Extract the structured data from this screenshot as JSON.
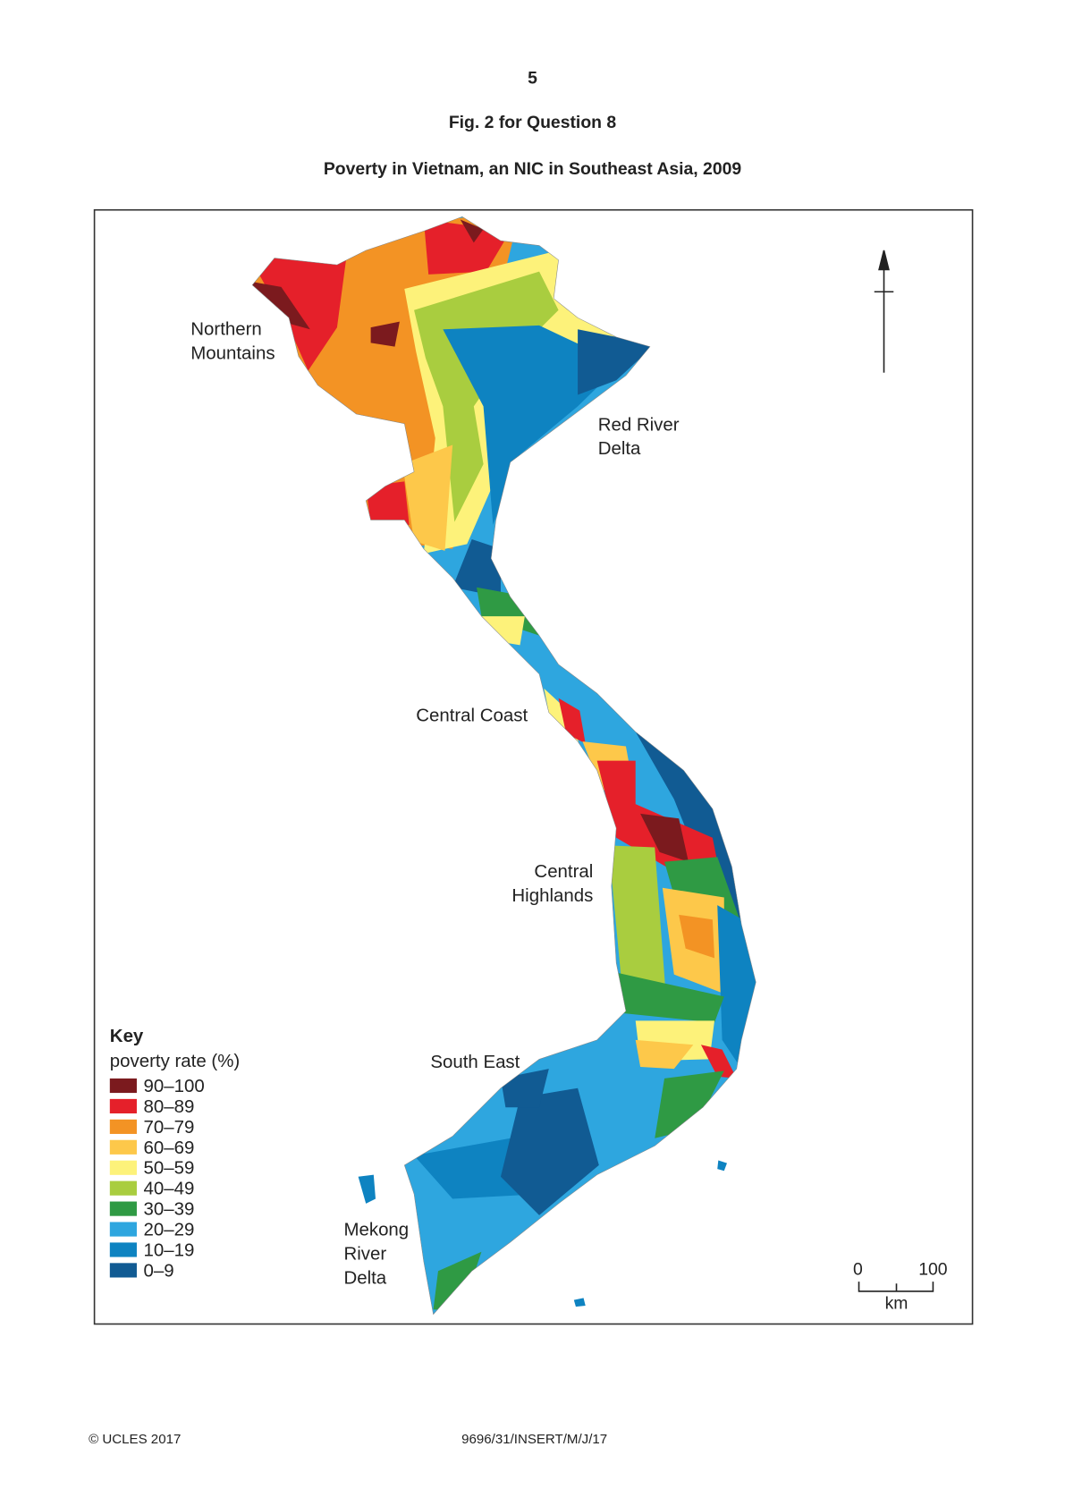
{
  "page_number": "5",
  "figure_title": "Fig. 2 for Question 8",
  "map_title": "Poverty in Vietnam, an NIC in Southeast Asia, 2009",
  "region_labels": [
    [
      "Northern",
      "Mountains"
    ],
    [
      "Red River",
      "Delta"
    ],
    [
      "Central Coast"
    ],
    [
      "Central",
      "Highlands"
    ],
    [
      "South East"
    ],
    [
      "Mekong",
      "River",
      "Delta"
    ]
  ],
  "key": {
    "title": "Key",
    "subtitle": "poverty rate (%)",
    "items": [
      {
        "label": "90–100",
        "color": "#7b1a1e"
      },
      {
        "label": "80–89",
        "color": "#e5202a"
      },
      {
        "label": "70–79",
        "color": "#f39324"
      },
      {
        "label": "60–69",
        "color": "#fdc84a"
      },
      {
        "label": "50–59",
        "color": "#fdf27a"
      },
      {
        "label": "40–49",
        "color": "#a9cd3f"
      },
      {
        "label": "30–39",
        "color": "#2f9a44"
      },
      {
        "label": "20–29",
        "color": "#2ea6df"
      },
      {
        "label": "10–19",
        "color": "#0e83c1"
      },
      {
        "label": "0–9",
        "color": "#115b93"
      }
    ]
  },
  "scale_bar": {
    "start": "0",
    "end": "100",
    "unit": "km"
  },
  "footer": {
    "left": "© UCLES 2017",
    "center": "9696/31/INSERT/M/J/17"
  }
}
